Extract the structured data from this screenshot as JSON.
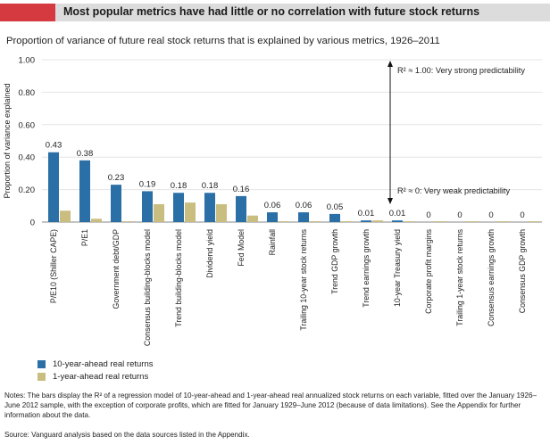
{
  "header": {
    "title": "Most popular metrics have had little or no correlation with future stock returns"
  },
  "subtitle": "Proportion of variance of future real stock returns that is explained by various metrics, 1926–2011",
  "colors": {
    "accent": "#d43a3f",
    "series_10yr": "#2a6fa6",
    "series_1yr": "#c9bd7f"
  },
  "chart_data": {
    "type": "bar",
    "ylabel": "Proportion of variance explained",
    "ylim": [
      0,
      1
    ],
    "yticks": [
      "0",
      "0.20",
      "0.40",
      "0.60",
      "0.80",
      "1.00"
    ],
    "categories": [
      "P/E10 (Shiller CAPE)",
      "P/E1",
      "Government debt/GDP",
      "Consensus building-blocks model",
      "Trend building-blocks model",
      "Dividend yield",
      "Fed Model",
      "Rainfall",
      "Trailing 10-year stock returns",
      "Trend GDP growth",
      "Trend earnings growth",
      "10-year Treasury yield",
      "Corporate profit margins",
      "Trailing 1-year stock returns",
      "Consensus earnings growth",
      "Consensus GDP growth"
    ],
    "series": [
      {
        "name": "10-year-ahead real returns",
        "values": [
          0.43,
          0.38,
          0.23,
          0.19,
          0.18,
          0.18,
          0.16,
          0.06,
          0.06,
          0.05,
          0.01,
          0.01,
          0,
          0,
          0,
          0
        ],
        "labels": [
          "0.43",
          "0.38",
          "0.23",
          "0.19",
          "0.18",
          "0.18",
          "0.16",
          "0.06",
          "0.06",
          "0.05",
          "0.01",
          "0.01",
          "0",
          "0",
          "0",
          "0"
        ]
      },
      {
        "name": "1-year-ahead real returns",
        "values": [
          0.07,
          0.02,
          0.005,
          0.11,
          0.12,
          0.11,
          0.04,
          0.005,
          0.005,
          0.005,
          0.01,
          0.005,
          0.005,
          0.005,
          0.005,
          0.005
        ]
      }
    ],
    "annotations": {
      "top": "R² ≈ 1.00: Very strong predictability",
      "bottom": "R² ≈ 0: Very weak predictability"
    },
    "legend_position": "bottom-left"
  },
  "notes": "Notes: The bars display the R² of a regression model of 10-year-ahead and 1-year-ahead real annualized stock returns on each variable, fitted over the January 1926–June 2012 sample, with the exception of corporate profits, which are fitted for January 1929–June 2012 (because of data limitations). See the Appendix for further information about the data.",
  "source": "Source: Vanguard analysis based on the data sources listed in the Appendix."
}
